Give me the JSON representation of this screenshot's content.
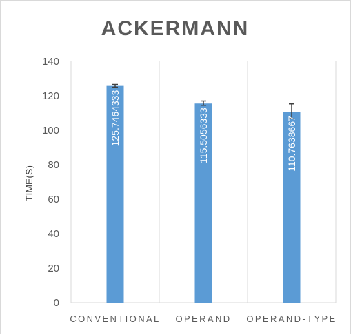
{
  "chart_data": {
    "type": "bar",
    "title": "ACKERMANN",
    "xlabel": "",
    "ylabel": "TIME(S)",
    "categories": [
      "CONVENTIONAL",
      "OPERAND",
      "OPERAND-TYPE"
    ],
    "values": [
      125.7464333,
      115.5056333,
      110.7638667
    ],
    "value_labels": [
      "125.7464333",
      "115.5056333",
      "110.7638667"
    ],
    "error_bars": [
      {
        "low": 125.0,
        "high": 126.6
      },
      {
        "low": 114.5,
        "high": 117.0
      },
      {
        "low": 106.8,
        "high": 115.3
      }
    ],
    "ylim": [
      0,
      140
    ],
    "yticks": [
      "0",
      "20",
      "40",
      "60",
      "80",
      "100",
      "120",
      "140"
    ],
    "grid": "vertical category separators",
    "legend": "none",
    "bar_color": "#5b9bd5"
  }
}
